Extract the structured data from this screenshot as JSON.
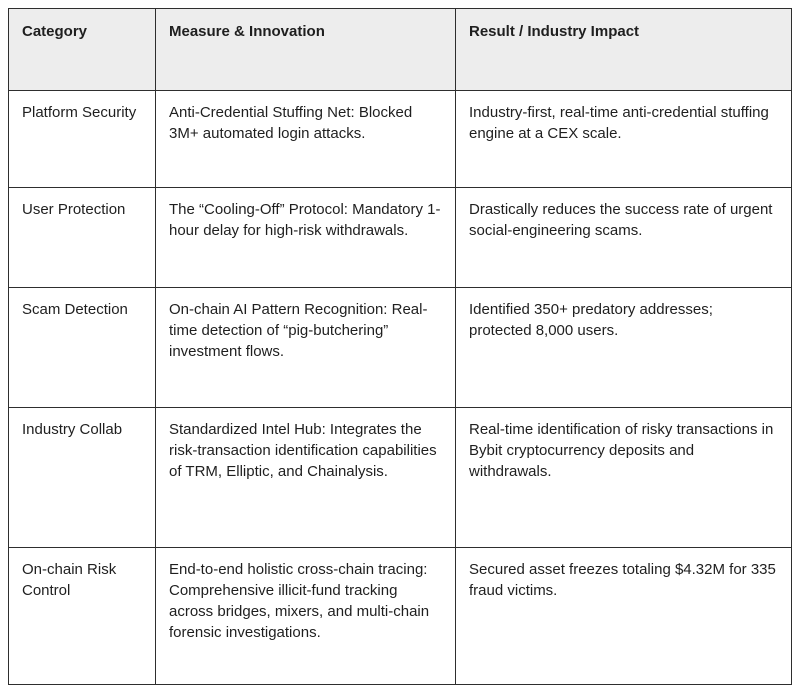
{
  "theme": {
    "header_background": "#ededed",
    "border_color": "#2e2e2e",
    "text_color": "#1f1f1f",
    "page_background": "#ffffff"
  },
  "table": {
    "columns": [
      {
        "label": "Category"
      },
      {
        "label": "Measure & Innovation"
      },
      {
        "label": "Result / Industry Impact"
      }
    ],
    "rows": [
      {
        "category": "Platform Security",
        "measure": "Anti-Credential Stuffing Net: Blocked 3M+ automated login attacks.",
        "result": "Industry-first, real-time anti-credential stuffing engine at a CEX scale."
      },
      {
        "category": "User Protection",
        "measure": "The “Cooling-Off” Protocol: Mandatory 1-hour delay for high-risk withdrawals.",
        "result": "Drastically reduces the success rate of urgent social-engineering scams."
      },
      {
        "category": "Scam Detection",
        "measure": "On-chain AI Pattern Recognition: Real-time detection of “pig-butchering” investment flows.",
        "result": "Identified 350+ predatory addresses; protected 8,000 users."
      },
      {
        "category": "Industry Collab",
        "measure": "Standardized Intel Hub: Integrates the risk-transaction identification capabilities of TRM, Elliptic, and Chainalysis.",
        "result": "Real-time identification of risky transactions in Bybit cryptocurrency deposits and withdrawals."
      },
      {
        "category": "On-chain Risk Control",
        "measure": "End-to-end holistic cross-chain tracing:  Comprehensive illicit-fund tracking across bridges, mixers, and multi-chain forensic investigations.",
        "result": "Secured asset freezes totaling $4.32M for 335 fraud victims."
      }
    ]
  }
}
